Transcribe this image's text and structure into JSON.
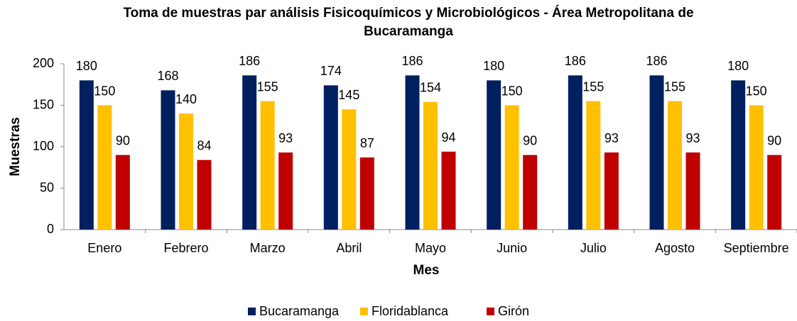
{
  "chart_data": {
    "type": "bar",
    "title": "Toma de muestras par análisis Fisicoquímicos y Microbiológicos -  Área Metropolitana de Bucaramanga",
    "x_label": "Mes",
    "y_label": "Muestras",
    "categories": [
      "Enero",
      "Febrero",
      "Marzo",
      "Abril",
      "Mayo",
      "Junio",
      "Julio",
      "Agosto",
      "Septiembre"
    ],
    "series": [
      {
        "name": "Bucaramanga",
        "color": "#002060",
        "values": [
          180,
          168,
          186,
          174,
          186,
          180,
          186,
          186,
          180
        ]
      },
      {
        "name": "Floridablanca",
        "color": "#ffc000",
        "values": [
          150,
          140,
          155,
          145,
          154,
          150,
          155,
          155,
          150
        ]
      },
      {
        "name": "Girón",
        "color": "#c00000",
        "values": [
          90,
          84,
          93,
          87,
          94,
          90,
          93,
          93,
          90
        ]
      }
    ],
    "ylim": [
      0,
      200
    ],
    "yticks": [
      0,
      50,
      100,
      150,
      200
    ],
    "grid": false,
    "legend": "bottom"
  }
}
